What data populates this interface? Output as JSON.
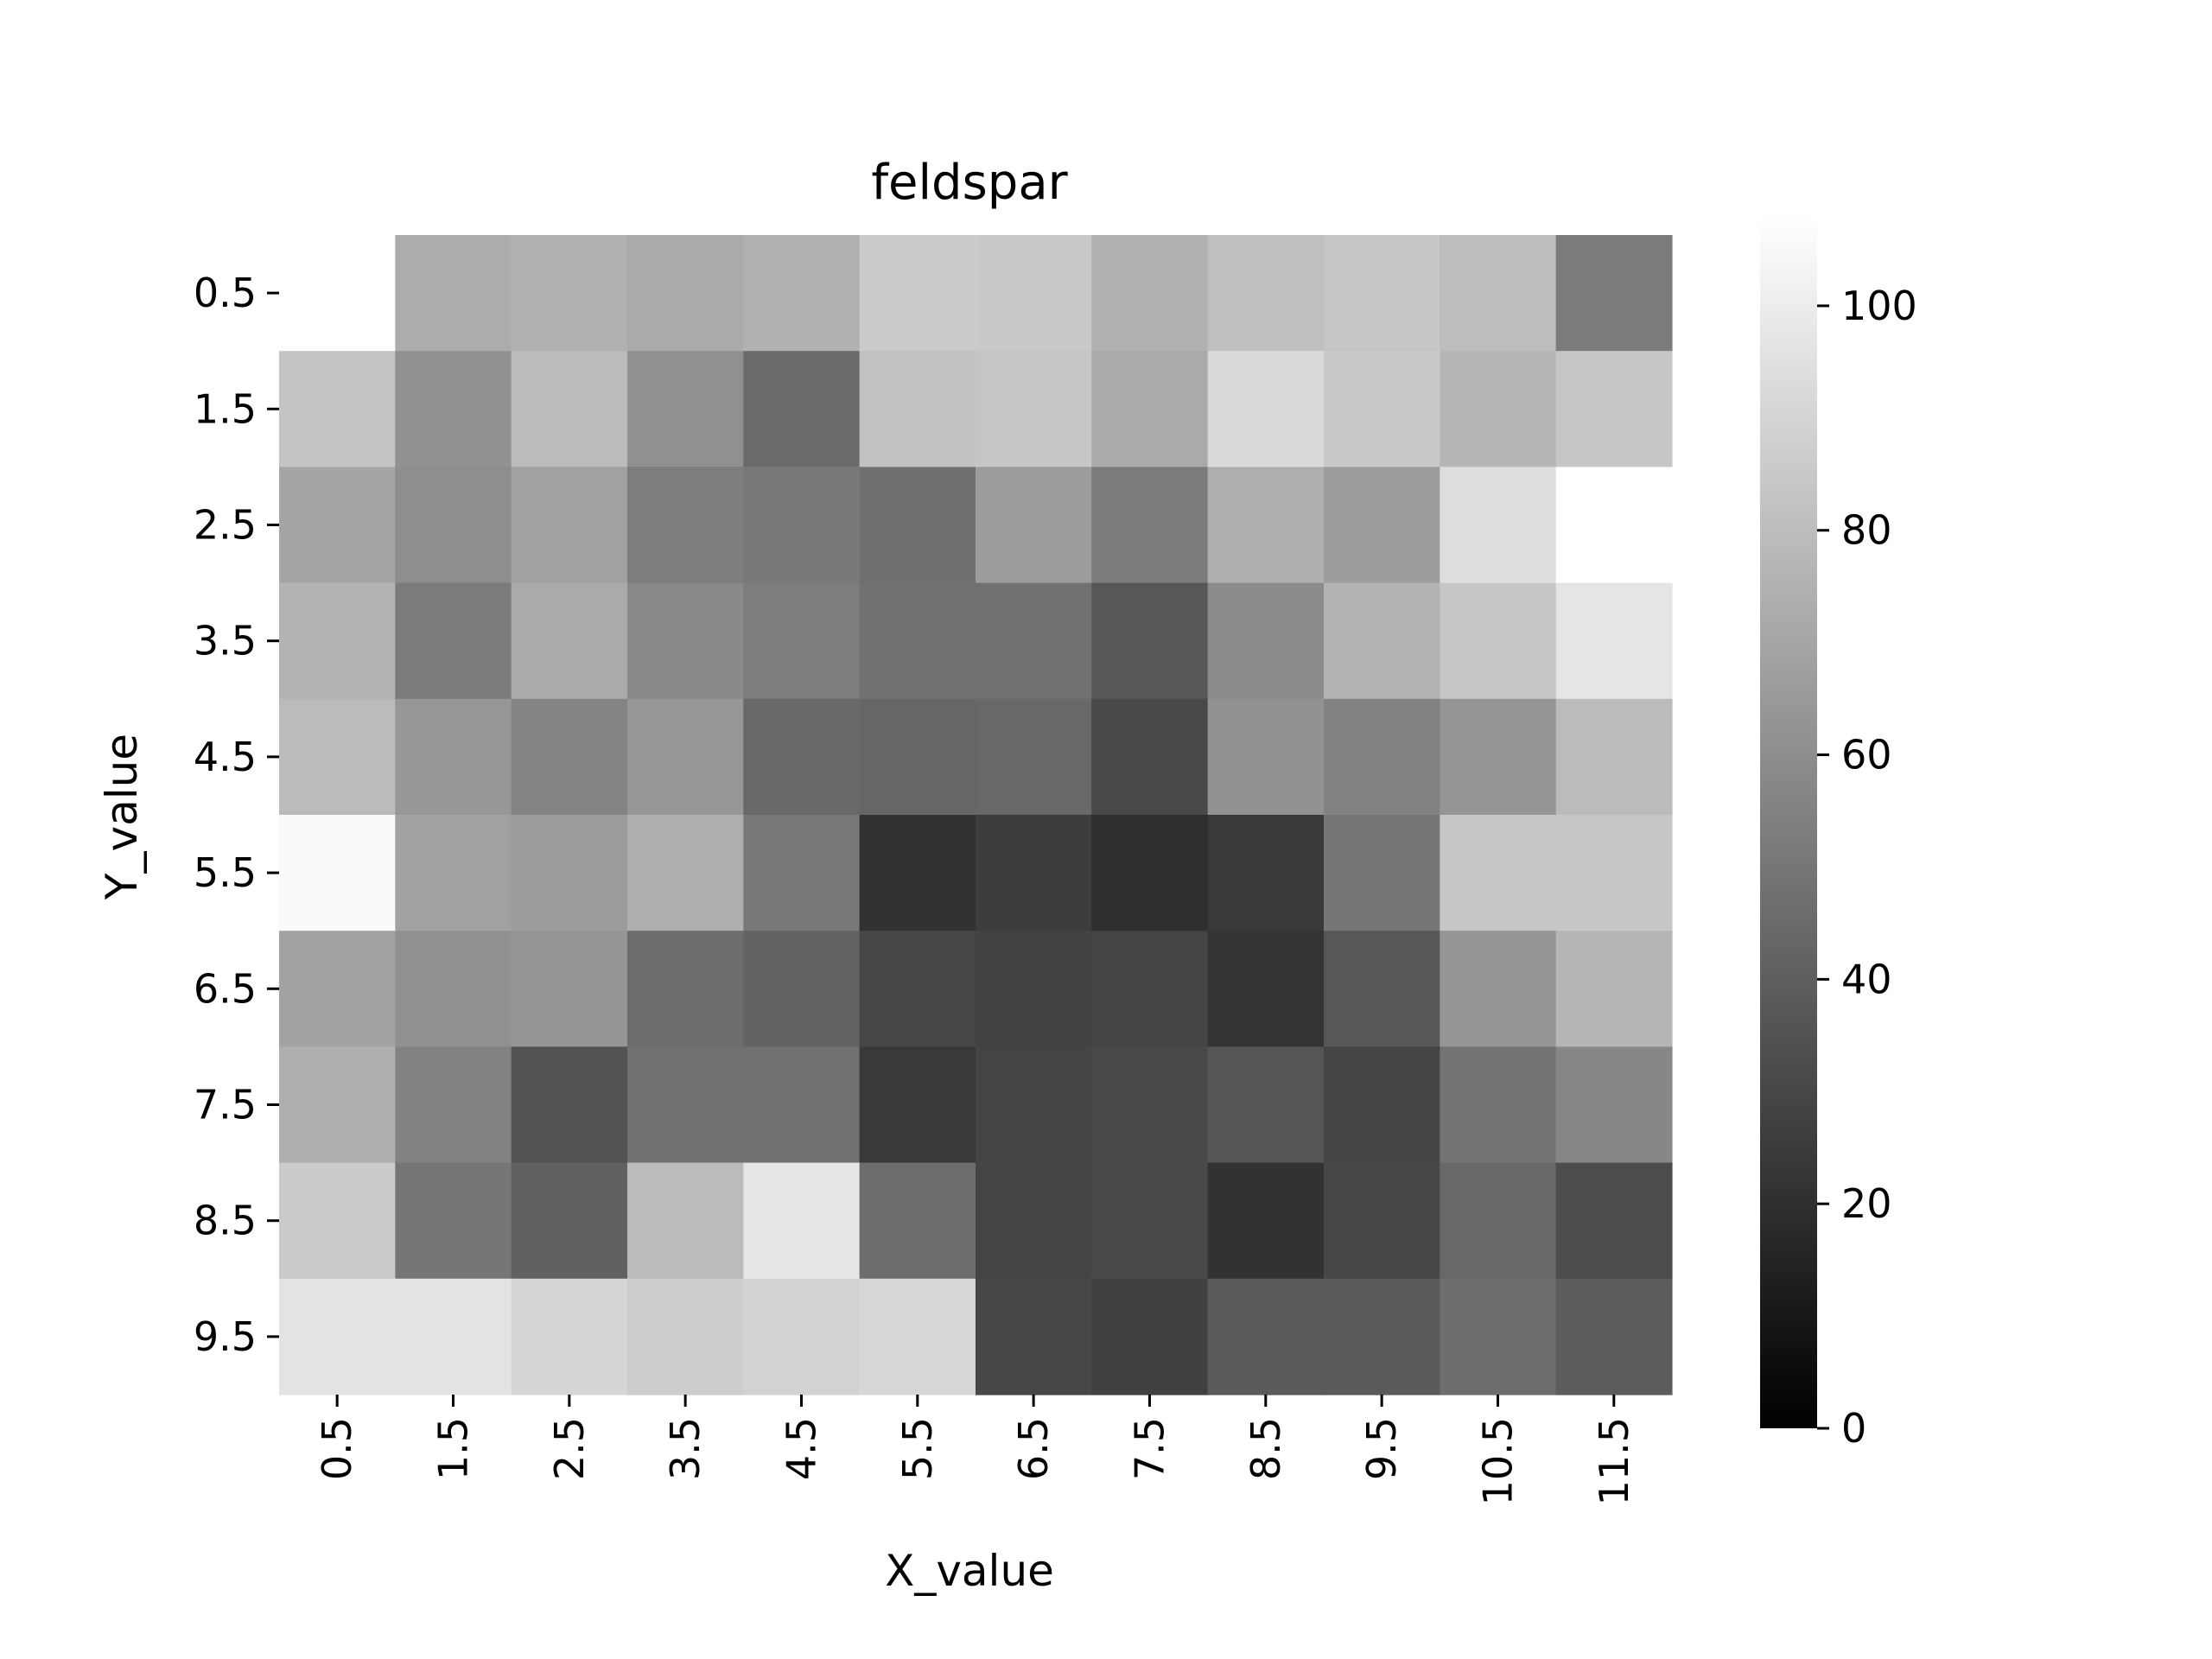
{
  "chart_data": {
    "type": "heatmap",
    "title": "feldspar",
    "xlabel": "X_value",
    "ylabel": "Y_value",
    "x_categories": [
      "0.5",
      "1.5",
      "2.5",
      "3.5",
      "4.5",
      "5.5",
      "6.5",
      "7.5",
      "8.5",
      "9.5",
      "10.5",
      "11.5"
    ],
    "y_categories": [
      "0.5",
      "1.5",
      "2.5",
      "3.5",
      "4.5",
      "5.5",
      "6.5",
      "7.5",
      "8.5",
      "9.5"
    ],
    "values": [
      [
        null,
        73,
        75,
        72,
        75,
        86,
        85,
        75,
        81,
        84,
        80,
        52
      ],
      [
        83,
        62,
        79,
        61,
        45,
        82,
        84,
        72,
        92,
        85,
        77,
        84
      ],
      [
        70,
        60,
        68,
        53,
        51,
        47,
        66,
        52,
        74,
        66,
        94,
        108
      ],
      [
        76,
        52,
        72,
        58,
        53,
        48,
        48,
        37,
        59,
        76,
        84,
        97
      ],
      [
        79,
        64,
        56,
        64,
        44,
        43,
        44,
        31,
        62,
        55,
        63,
        79
      ],
      [
        106,
        68,
        66,
        74,
        51,
        21,
        26,
        20,
        24,
        50,
        84,
        84
      ],
      [
        69,
        61,
        63,
        46,
        42,
        30,
        28,
        29,
        22,
        37,
        63,
        77
      ],
      [
        74,
        55,
        35,
        48,
        48,
        24,
        29,
        31,
        36,
        29,
        49,
        57
      ],
      [
        86,
        50,
        41,
        79,
        98,
        46,
        29,
        31,
        21,
        30,
        44,
        32
      ],
      [
        96,
        96,
        90,
        87,
        89,
        91,
        30,
        27,
        38,
        38,
        46,
        39
      ]
    ],
    "colorbar": {
      "vmin": 0,
      "vmax": 108,
      "ticks": [
        0,
        20,
        40,
        60,
        80,
        100
      ],
      "colormap": "grayscale",
      "color_low": "#000000",
      "color_high": "#ffffff"
    },
    "grid": false,
    "legend": "colorbar-right"
  }
}
